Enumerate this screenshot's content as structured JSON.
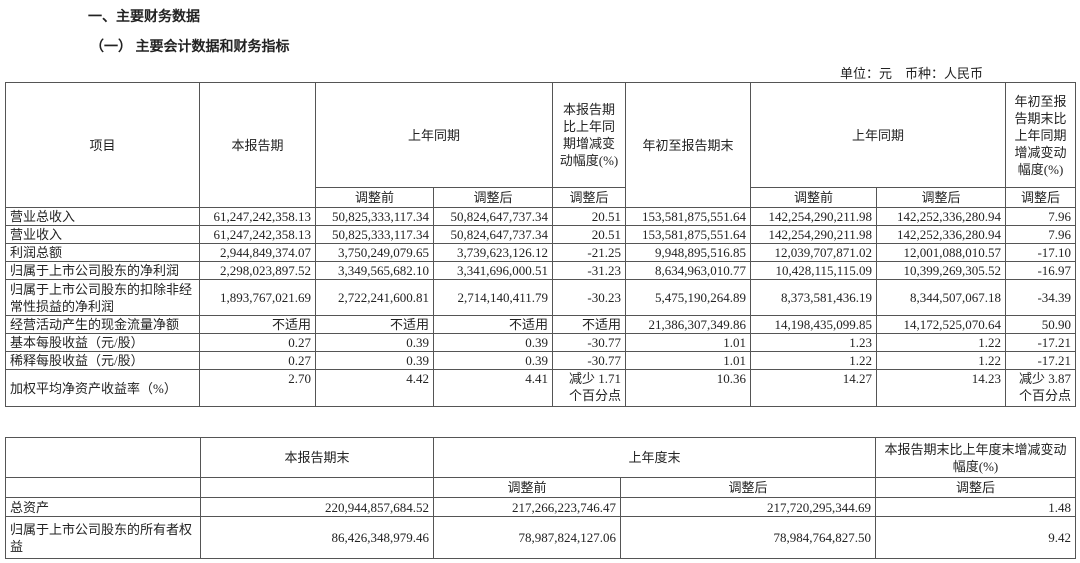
{
  "title": "一、主要财务数据",
  "subtitle": "（一） 主要会计数据和财务指标",
  "unit": "单位：元　币种：人民币",
  "table1": {
    "headers": {
      "item": "项目",
      "current": "本报告期",
      "prior": "上年同期",
      "change": "本报告期比上年同期增减变动幅度(%)",
      "ytd": "年初至报告期末",
      "prior_ytd": "上年同期",
      "ytd_change": "年初至报告期末比上年同期增减变动幅度(%)",
      "before": "调整前",
      "after": "调整后",
      "after2": "调整后",
      "before2": "调整前",
      "after3": "调整后",
      "after4": "调整后"
    },
    "rows": [
      [
        "营业总收入",
        "61,247,242,358.13",
        "50,825,333,117.34",
        "50,824,647,737.34",
        "20.51",
        "153,581,875,551.64",
        "142,254,290,211.98",
        "142,252,336,280.94",
        "7.96"
      ],
      [
        "营业收入",
        "61,247,242,358.13",
        "50,825,333,117.34",
        "50,824,647,737.34",
        "20.51",
        "153,581,875,551.64",
        "142,254,290,211.98",
        "142,252,336,280.94",
        "7.96"
      ],
      [
        "利润总额",
        "2,944,849,374.07",
        "3,750,249,079.65",
        "3,739,623,126.12",
        "-21.25",
        "9,948,895,516.85",
        "12,039,707,871.02",
        "12,001,088,010.57",
        "-17.10"
      ],
      [
        "归属于上市公司股东的净利润",
        "2,298,023,897.52",
        "3,349,565,682.10",
        "3,341,696,000.51",
        "-31.23",
        "8,634,963,010.77",
        "10,428,115,115.09",
        "10,399,269,305.52",
        "-16.97"
      ],
      [
        "归属于上市公司股东的扣除非经常性损益的净利润",
        "1,893,767,021.69",
        "2,722,241,600.81",
        "2,714,140,411.79",
        "-30.23",
        "5,475,190,264.89",
        "8,373,581,436.19",
        "8,344,507,067.18",
        "-34.39"
      ],
      [
        "经营活动产生的现金流量净额",
        "不适用",
        "不适用",
        "不适用",
        "不适用",
        "21,386,307,349.86",
        "14,198,435,099.85",
        "14,172,525,070.64",
        "50.90"
      ],
      [
        "基本每股收益（元/股）",
        "0.27",
        "0.39",
        "0.39",
        "-30.77",
        "1.01",
        "1.23",
        "1.22",
        "-17.21"
      ],
      [
        "稀释每股收益（元/股）",
        "0.27",
        "0.39",
        "0.39",
        "-30.77",
        "1.01",
        "1.22",
        "1.22",
        "-17.21"
      ],
      [
        "加权平均净资产收益率（%）",
        "2.70",
        "4.42",
        "4.41",
        "减少 1.71 个百分点",
        "10.36",
        "14.27",
        "14.23",
        "减少 3.87 个百分点"
      ]
    ]
  },
  "table2": {
    "headers": {
      "current": "本报告期末",
      "prior": "上年度末",
      "change": "本报告期末比上年度末增减变动幅度(%)",
      "before": "调整前",
      "after": "调整后",
      "after2": "调整后"
    },
    "rows": [
      [
        "总资产",
        "220,944,857,684.52",
        "217,266,223,746.47",
        "217,720,295,344.69",
        "1.48"
      ],
      [
        "归属于上市公司股东的所有者权益",
        "86,426,348,979.46",
        "78,987,824,127.06",
        "78,984,764,827.50",
        "9.42"
      ]
    ]
  }
}
